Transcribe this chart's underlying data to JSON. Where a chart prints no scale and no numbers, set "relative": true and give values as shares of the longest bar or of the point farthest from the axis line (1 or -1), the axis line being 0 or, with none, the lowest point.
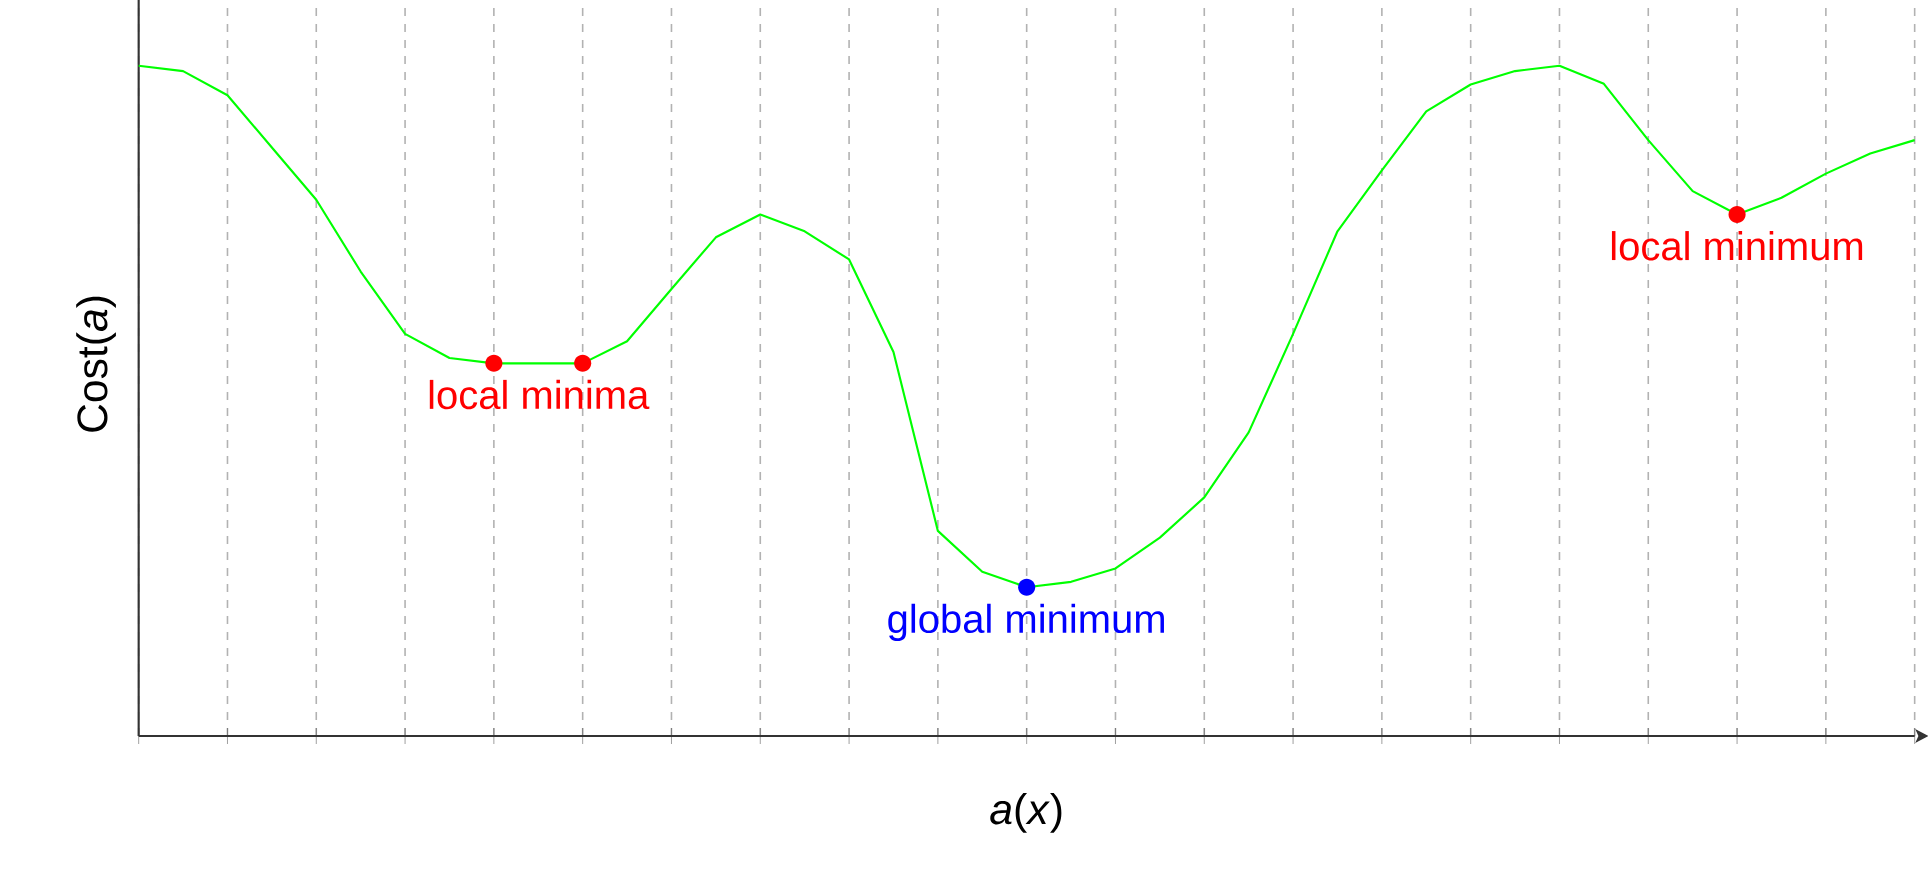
{
  "chart_data": {
    "type": "line",
    "xlabel": "*a*(*x*)",
    "ylabel": "Cost(*a*)",
    "relative": true,
    "grid": "x",
    "line_style": "solid",
    "categories": [
      null,
      null,
      null,
      null,
      null,
      null,
      null,
      null,
      null,
      null,
      null,
      null,
      null,
      null,
      null,
      null,
      null,
      null,
      null,
      null,
      null,
      null,
      null,
      null,
      null,
      null,
      null,
      null,
      null,
      null,
      null,
      null,
      null,
      null,
      null,
      null,
      null,
      null,
      null,
      null,
      null
    ],
    "series": [
      {
        "color": "#00ff00",
        "values": [
          1,
          0.992,
          0.956,
          0.878,
          0.8,
          0.693,
          0.6,
          0.564,
          0.556,
          0.556,
          0.556,
          0.589,
          0.667,
          0.744,
          0.778,
          0.753,
          0.711,
          0.573,
          0.306,
          0.245,
          0.222,
          0.23,
          0.25,
          0.296,
          0.356,
          0.453,
          0.6,
          0.753,
          0.844,
          0.932,
          0.972,
          0.992,
          1,
          0.973,
          0.889,
          0.813,
          0.778,
          0.803,
          0.839,
          0.869,
          0.889
        ]
      }
    ],
    "annotations": [
      "local minima",
      "global minimum",
      "local minimum"
    ]
  }
}
